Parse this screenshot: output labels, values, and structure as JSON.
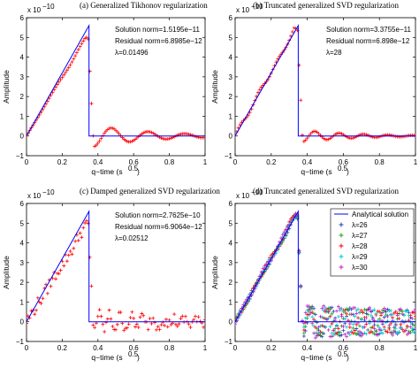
{
  "chart_data": [
    {
      "type": "line",
      "title": "(a) Generalized Tikhonov regularization",
      "xlabel": "q−time (s",
      "xlabel_exp": "0.5",
      "xlabel_close": ")",
      "ylabel": "Amplitude",
      "y_scale_base": "x 10",
      "y_scale_exp": "−10",
      "xlim": [
        0,
        1
      ],
      "ylim": [
        -1,
        6
      ],
      "xticks": [
        "0",
        "0.2",
        "0.4",
        "0.6",
        "0.8",
        "1"
      ],
      "yticks": [
        "−1",
        "0",
        "1",
        "2",
        "3",
        "4",
        "5",
        "6"
      ],
      "annotations": [
        "Solution norm=1.5195e−11",
        "Residual norm=6.8985e−12",
        "λ=0.01496"
      ],
      "analytical": {
        "x": [
          0,
          0.35,
          0.35,
          1.0
        ],
        "y": [
          0,
          5.6,
          0,
          0
        ],
        "color": "#0000ff"
      },
      "series": [
        {
          "marker": "+",
          "color": "#ff0000",
          "style": "smooth",
          "noise": 0,
          "peak": 5.0,
          "ring_amp": 0.55,
          "ring_decay": 3.0,
          "ring_period": 0.205
        }
      ]
    },
    {
      "type": "line",
      "title": "(b) Truncated generalized SVD regularization",
      "xlabel": "q−time (s",
      "xlabel_exp": "0.5",
      "xlabel_close": ")",
      "ylabel": "Amplitude",
      "y_scale_base": "x 10",
      "y_scale_exp": "−10",
      "xlim": [
        0,
        1
      ],
      "ylim": [
        -1,
        6
      ],
      "xticks": [
        "0",
        "0.2",
        "0.4",
        "0.6",
        "0.8",
        "1"
      ],
      "yticks": [
        "−1",
        "0",
        "1",
        "2",
        "3",
        "4",
        "5",
        "6"
      ],
      "annotations": [
        "Solution norm=3.3755e−11",
        "Residual norm=6.898e−12",
        "λ=28"
      ],
      "analytical": {
        "x": [
          0,
          0.35,
          0.35,
          1.0
        ],
        "y": [
          0,
          5.6,
          0,
          0
        ],
        "color": "#0000ff"
      },
      "series": [
        {
          "marker": "+",
          "color": "#ff0000",
          "style": "wavy",
          "noise": 0,
          "peak": 5.45,
          "ring_amp": 0.3,
          "ring_decay": 3.5,
          "ring_period": 0.135
        }
      ]
    },
    {
      "type": "line",
      "title": "(c) Damped generalized SVD regularization",
      "xlabel": "q−time (s",
      "xlabel_exp": "0.5",
      "xlabel_close": ")",
      "ylabel": "Amplitude",
      "y_scale_base": "x 10",
      "y_scale_exp": "−10",
      "xlim": [
        0,
        1
      ],
      "ylim": [
        -1,
        6
      ],
      "xticks": [
        "0",
        "0.2",
        "0.4",
        "0.6",
        "0.8",
        "1"
      ],
      "yticks": [
        "−1",
        "0",
        "1",
        "2",
        "3",
        "4",
        "5",
        "6"
      ],
      "annotations": [
        "Solution norm=2.7625e−10",
        "Residual norm=6.9064e−12",
        "λ=0.02512"
      ],
      "analytical": {
        "x": [
          0,
          0.35,
          0.35,
          1.0
        ],
        "y": [
          0,
          5.6,
          0,
          0
        ],
        "color": "#0000ff"
      },
      "series": [
        {
          "marker": "+",
          "color": "#ff0000",
          "style": "noisy",
          "noise": 0.32,
          "peak": 4.9,
          "ring_amp": 0.4,
          "ring_decay": 2.2,
          "ring_period": 0.06
        }
      ]
    },
    {
      "type": "line",
      "title": "(d) Truncated generalized SVD regularization",
      "xlabel": "q−time (s",
      "xlabel_exp": "0.5",
      "xlabel_close": ")",
      "ylabel": "Amplitude",
      "y_scale_base": "x 10",
      "y_scale_exp": "−10",
      "xlim": [
        0,
        1
      ],
      "ylim": [
        -1,
        6
      ],
      "xticks": [
        "0",
        "0.2",
        "0.4",
        "0.6",
        "0.8",
        "1"
      ],
      "yticks": [
        "−1",
        "0",
        "1",
        "2",
        "3",
        "4",
        "5",
        "6"
      ],
      "annotations": [],
      "legend": {
        "placement": "top-right",
        "entries": [
          {
            "name": "Analytical solution",
            "color": "#0000ff",
            "marker": "line"
          },
          {
            "name": "λ=26",
            "color": "#1f3fbf",
            "marker": "+"
          },
          {
            "name": "λ=27",
            "color": "#1a9e1a",
            "marker": "+"
          },
          {
            "name": "λ=28",
            "color": "#ff0000",
            "marker": "+"
          },
          {
            "name": "λ=29",
            "color": "#00c8c8",
            "marker": "+"
          },
          {
            "name": "λ=30",
            "color": "#c020c0",
            "marker": "+"
          }
        ]
      },
      "analytical": {
        "x": [
          0,
          0.35,
          0.35,
          1.0
        ],
        "y": [
          0,
          5.6,
          0,
          0
        ],
        "color": "#0000ff"
      },
      "series": [
        {
          "name": "λ=26",
          "marker": "+",
          "color": "#1f3fbf",
          "style": "wavy",
          "noise": 0,
          "peak": 5.3,
          "ring_amp": 0.8,
          "ring_decay": 0.5,
          "ring_period": 0.105,
          "phase": 0.0
        },
        {
          "name": "λ=27",
          "marker": "+",
          "color": "#1a9e1a",
          "style": "wavy",
          "noise": 0,
          "peak": 5.35,
          "ring_amp": 0.75,
          "ring_decay": 0.5,
          "ring_period": 0.1,
          "phase": 1.2
        },
        {
          "name": "λ=28",
          "marker": "+",
          "color": "#ff0000",
          "style": "wavy",
          "noise": 0,
          "peak": 5.45,
          "ring_amp": 0.7,
          "ring_decay": 0.6,
          "ring_period": 0.095,
          "phase": 2.4
        },
        {
          "name": "λ=29",
          "marker": "+",
          "color": "#00c8c8",
          "style": "wavy",
          "noise": 0,
          "peak": 5.4,
          "ring_amp": 0.75,
          "ring_decay": 0.5,
          "ring_period": 0.09,
          "phase": 3.6
        },
        {
          "name": "λ=30",
          "marker": "+",
          "color": "#c020c0",
          "style": "wavy",
          "noise": 0,
          "peak": 5.5,
          "ring_amp": 0.85,
          "ring_decay": 0.45,
          "ring_period": 0.085,
          "phase": 4.8
        }
      ]
    }
  ]
}
